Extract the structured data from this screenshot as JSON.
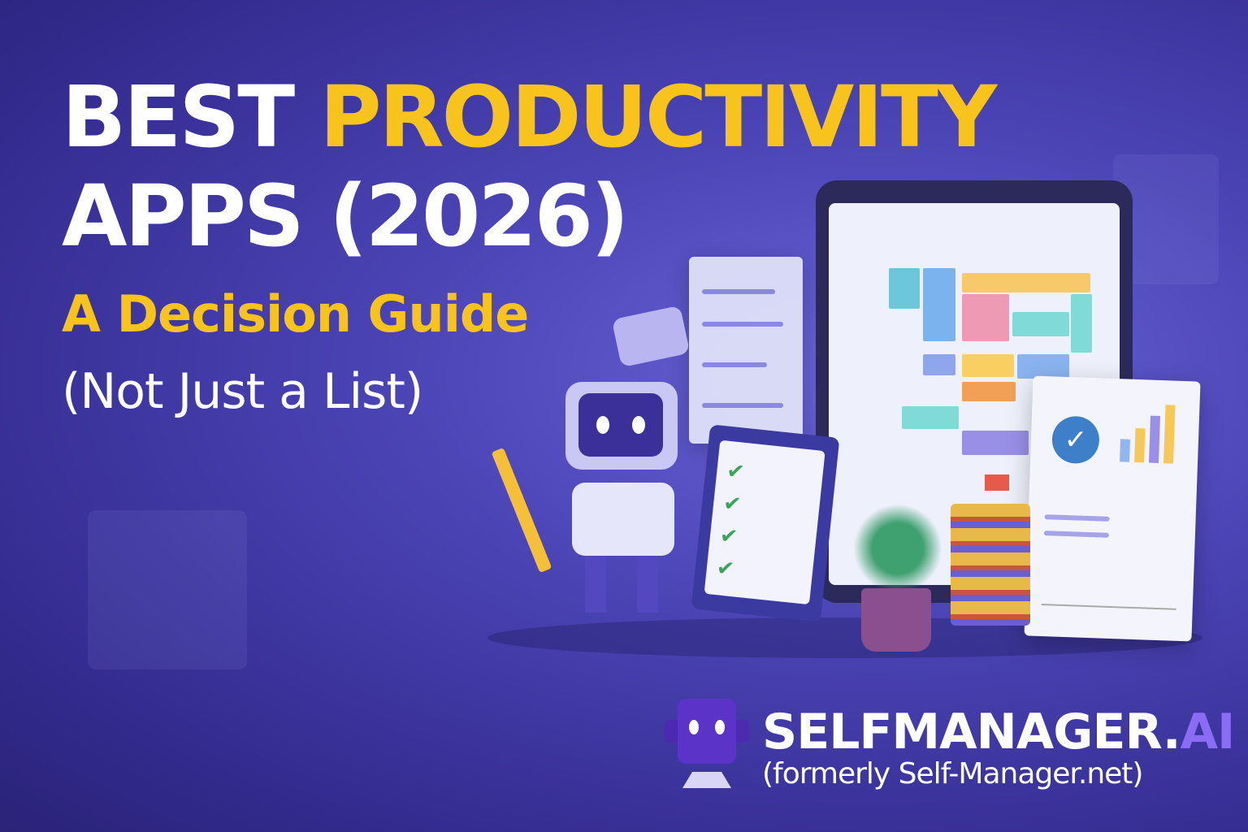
{
  "headline": {
    "line1_white": "BEST",
    "line1_yellow": "PRODUCTIVITY",
    "line2": "APPS (2026)",
    "subtitle": "A Decision Guide",
    "tagline": "(Not Just a List)"
  },
  "brand": {
    "name_main": "SELFMANAGER.",
    "name_accent": "AI",
    "former": "(formerly Self-Manager.net)"
  },
  "colors": {
    "background": "#3f37a6",
    "highlight_yellow": "#f7c31c",
    "accent_purple": "#8b6cf5",
    "text_white": "#ffffff"
  },
  "icons": [
    "robot-mascot",
    "clipboard-checklist",
    "tablet-calendar",
    "report-chart",
    "plant",
    "books-flag",
    "chat-bubble"
  ]
}
